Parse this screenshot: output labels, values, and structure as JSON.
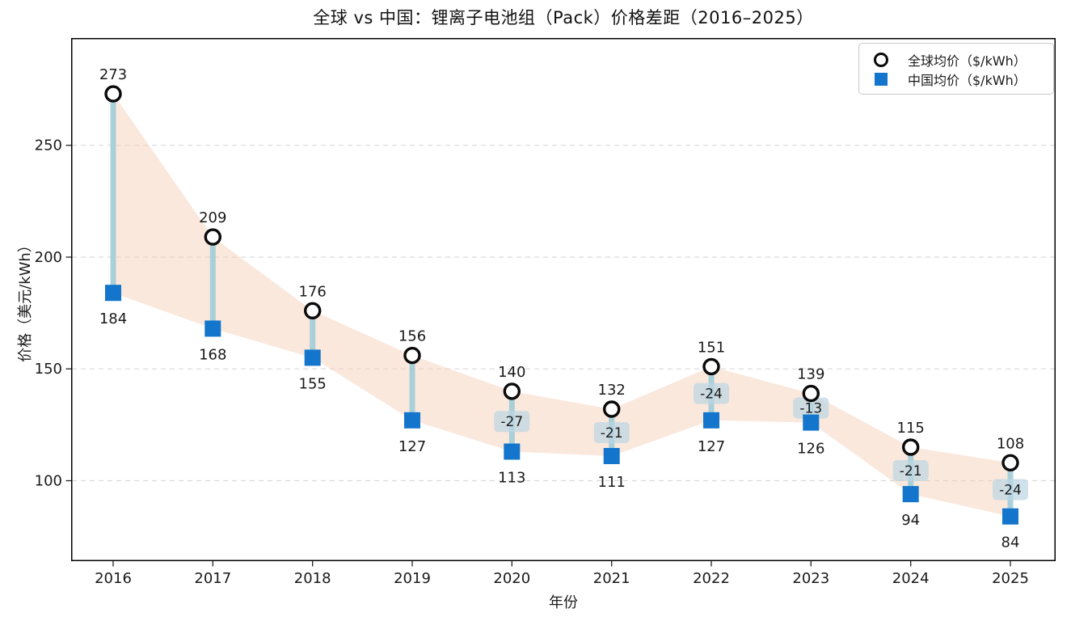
{
  "title": "全球 vs 中国：锂离子电池组（Pack）价格差距（2016–2025）",
  "legend": {
    "items": [
      {
        "label": "全球均价（$/kWh）",
        "marker": "open-circle"
      },
      {
        "label": "中国均价（$/kWh）",
        "marker": "filled-square"
      }
    ]
  },
  "chart_data": {
    "type": "line",
    "title": "全球 vs 中国：锂离子电池组（Pack）价格差距（2016–2025）",
    "xlabel": "年份",
    "ylabel": "价格（美元/kWh）",
    "x": [
      "2016",
      "2017",
      "2018",
      "2019",
      "2020",
      "2021",
      "2022",
      "2023",
      "2024",
      "2025"
    ],
    "series": [
      {
        "name": "全球均价（$/kWh）",
        "marker": "open-circle",
        "color": "#0a0a0a",
        "values": [
          273,
          209,
          176,
          156,
          140,
          132,
          151,
          139,
          115,
          108
        ]
      },
      {
        "name": "中国均价（$/kWh）",
        "marker": "filled-square",
        "color": "#1375cb",
        "values": [
          184,
          168,
          155,
          127,
          113,
          111,
          127,
          126,
          94,
          84
        ]
      }
    ],
    "diff_labels": [
      null,
      null,
      null,
      null,
      "-27",
      "-21",
      "-24",
      "-13",
      "-21",
      "-24"
    ],
    "yticks": [
      100,
      150,
      200,
      250
    ],
    "ylim": [
      64,
      298
    ],
    "grid": "horizontal-dashed",
    "legend_position": "upper-right",
    "band_color": "#f5cdb4",
    "connector_color": "#9ccbd9",
    "diff_label_bg": "#bcd6e2",
    "grid_color": "#d9d9d9",
    "spine_color": "#000000"
  }
}
